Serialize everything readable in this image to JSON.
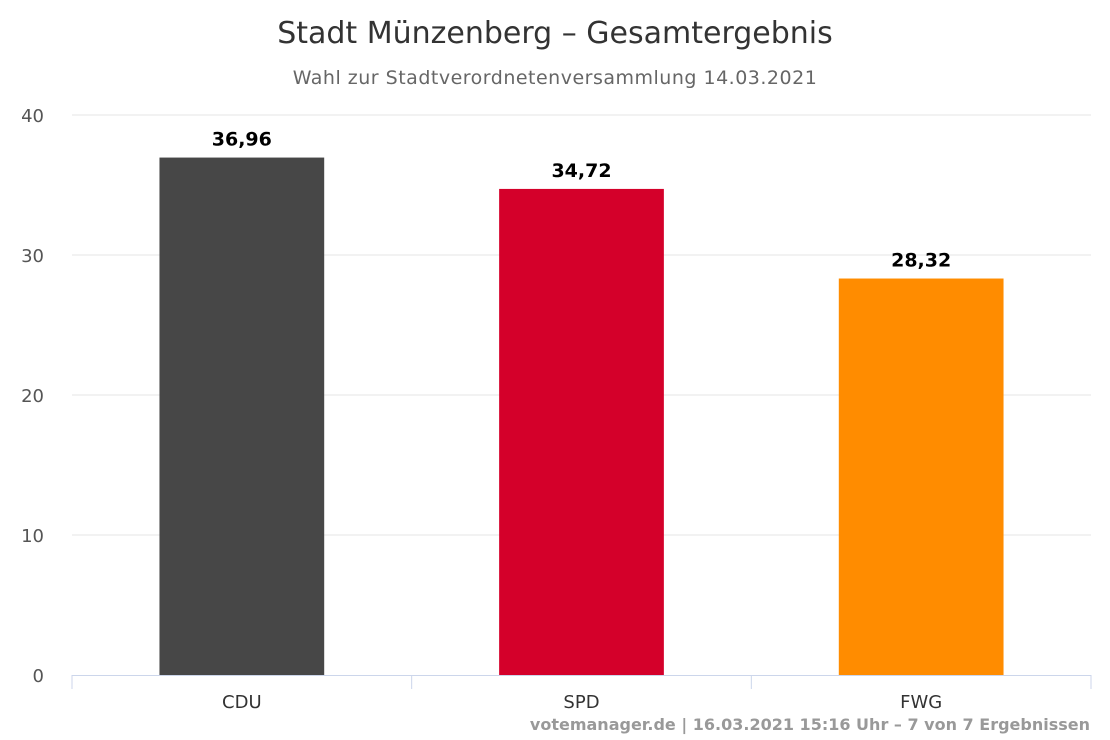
{
  "chart_data": {
    "type": "bar",
    "title": "Stadt Münzenberg – Gesamtergebnis",
    "subtitle": "Wahl zur Stadtverordnetenversammlung 14.03.2021",
    "categories": [
      "CDU",
      "SPD",
      "FWG"
    ],
    "values": [
      36.96,
      34.72,
      28.32
    ],
    "data_labels": [
      "36,96",
      "34,72",
      "28,32"
    ],
    "colors": [
      "#474747",
      "#d4002a",
      "#ff8c00"
    ],
    "yticks": [
      0,
      10,
      20,
      30,
      40
    ],
    "ylim": [
      0,
      40
    ],
    "xlabel": "",
    "ylabel": "",
    "grid": true,
    "legend": "none"
  },
  "credits": "votemanager.de | 16.03.2021 15:16 Uhr – 7 von 7 Ergebnissen"
}
